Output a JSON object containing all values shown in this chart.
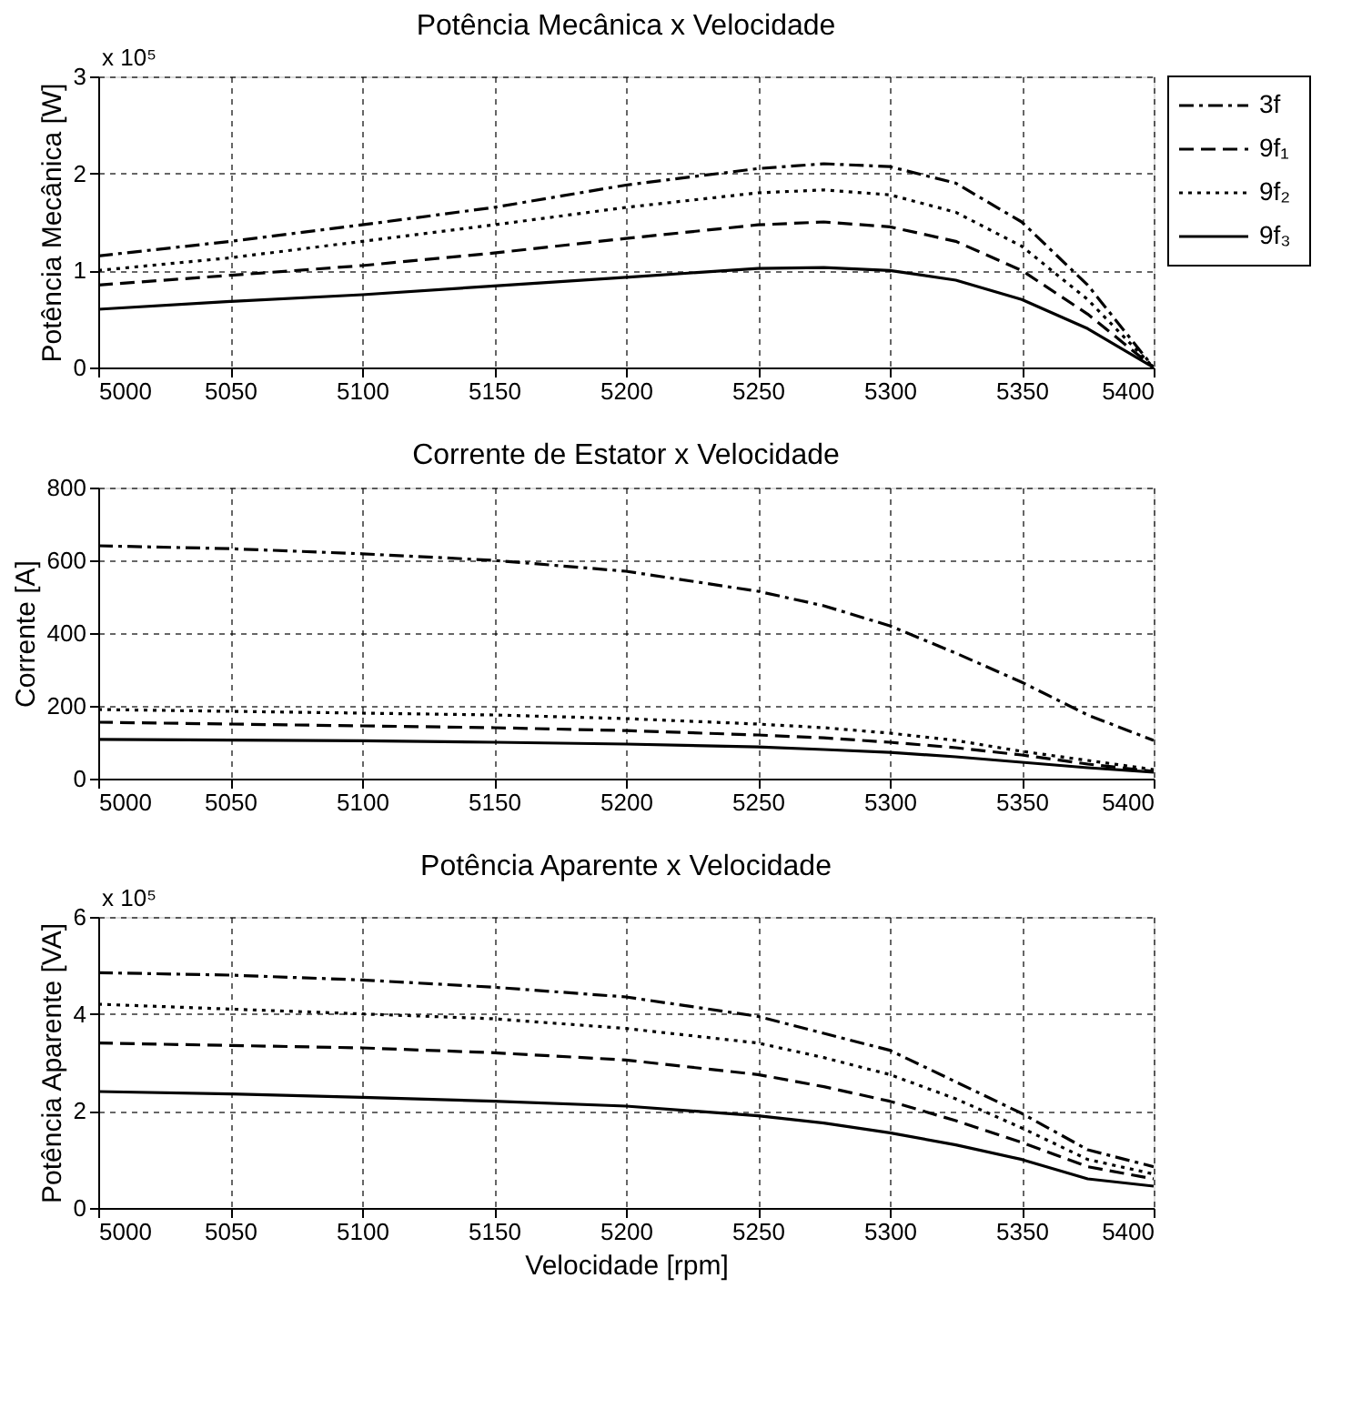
{
  "chart_data": [
    {
      "type": "line",
      "title": "Potência Mecânica x Velocidade",
      "ylabel": "Potência Mecânica [W]",
      "annotations": [
        "x 10⁵"
      ],
      "x": [
        5000,
        5050,
        5100,
        5150,
        5200,
        5250,
        5275,
        5300,
        5325,
        5350,
        5375,
        5400
      ],
      "xlim": [
        5000,
        5400
      ],
      "xticks": [
        5000,
        5050,
        5100,
        5150,
        5200,
        5250,
        5300,
        5350,
        5400
      ],
      "ylim": [
        0,
        3
      ],
      "yticks": [
        0,
        1,
        2,
        3
      ],
      "grid": true,
      "legend": "top right",
      "series": [
        {
          "name": "3f",
          "color": "#000000",
          "line_style": "dashdot",
          "values": [
            1.15,
            1.3,
            1.47,
            1.65,
            1.88,
            2.05,
            2.1,
            2.07,
            1.9,
            1.5,
            0.85,
            0
          ]
        },
        {
          "name": "9f₁",
          "color": "#000000",
          "line_style": "dashed",
          "values": [
            0.85,
            0.95,
            1.05,
            1.18,
            1.33,
            1.47,
            1.5,
            1.45,
            1.3,
            1.0,
            0.55,
            0
          ]
        },
        {
          "name": "9f₂",
          "color": "#000000",
          "line_style": "dotted",
          "values": [
            1.0,
            1.13,
            1.3,
            1.47,
            1.65,
            1.8,
            1.83,
            1.78,
            1.6,
            1.25,
            0.7,
            0
          ]
        },
        {
          "name": "9f₃",
          "color": "#000000",
          "line_style": "solid",
          "values": [
            0.6,
            0.68,
            0.75,
            0.84,
            0.93,
            1.02,
            1.03,
            1.0,
            0.9,
            0.7,
            0.4,
            0
          ]
        }
      ]
    },
    {
      "type": "line",
      "title": "Corrente de Estator x Velocidade",
      "ylabel": "Corrente [A]",
      "x": [
        5000,
        5050,
        5100,
        5150,
        5200,
        5250,
        5275,
        5300,
        5325,
        5350,
        5375,
        5400
      ],
      "xlim": [
        5000,
        5400
      ],
      "xticks": [
        5000,
        5050,
        5100,
        5150,
        5200,
        5250,
        5300,
        5350,
        5400
      ],
      "ylim": [
        0,
        800
      ],
      "yticks": [
        0,
        200,
        400,
        600,
        800
      ],
      "grid": true,
      "series": [
        {
          "color": "#000000",
          "line_style": "dashdot",
          "values": [
            640,
            632,
            618,
            600,
            570,
            515,
            475,
            420,
            345,
            265,
            175,
            105
          ]
        },
        {
          "color": "#000000",
          "line_style": "dashed",
          "values": [
            155,
            150,
            145,
            140,
            132,
            120,
            112,
            100,
            85,
            65,
            40,
            20
          ]
        },
        {
          "color": "#000000",
          "line_style": "dotted",
          "values": [
            190,
            185,
            180,
            175,
            165,
            150,
            140,
            125,
            105,
            75,
            50,
            25
          ]
        },
        {
          "color": "#000000",
          "line_style": "solid",
          "values": [
            108,
            106,
            104,
            100,
            95,
            87,
            80,
            72,
            60,
            45,
            30,
            18
          ]
        }
      ]
    },
    {
      "type": "line",
      "title": "Potência Aparente x Velocidade",
      "ylabel": "Potência Aparente [VA]",
      "xlabel": "Velocidade [rpm]",
      "annotations": [
        "x 10⁵"
      ],
      "x": [
        5000,
        5050,
        5100,
        5150,
        5200,
        5250,
        5275,
        5300,
        5325,
        5350,
        5375,
        5400
      ],
      "xlim": [
        5000,
        5400
      ],
      "xticks": [
        5000,
        5050,
        5100,
        5150,
        5200,
        5250,
        5300,
        5350,
        5400
      ],
      "ylim": [
        0,
        6
      ],
      "yticks": [
        0,
        2,
        4,
        6
      ],
      "grid": true,
      "series": [
        {
          "color": "#000000",
          "line_style": "dashdot",
          "values": [
            4.85,
            4.8,
            4.7,
            4.55,
            4.35,
            3.95,
            3.6,
            3.25,
            2.6,
            1.95,
            1.2,
            0.85
          ]
        },
        {
          "color": "#000000",
          "line_style": "dashed",
          "values": [
            3.4,
            3.35,
            3.3,
            3.2,
            3.05,
            2.75,
            2.5,
            2.2,
            1.8,
            1.35,
            0.85,
            0.6
          ]
        },
        {
          "color": "#000000",
          "line_style": "dotted",
          "values": [
            4.2,
            4.1,
            4.0,
            3.9,
            3.7,
            3.4,
            3.1,
            2.75,
            2.25,
            1.65,
            1.0,
            0.7
          ]
        },
        {
          "color": "#000000",
          "line_style": "solid",
          "values": [
            2.4,
            2.35,
            2.28,
            2.2,
            2.1,
            1.9,
            1.75,
            1.55,
            1.3,
            1.0,
            0.6,
            0.45
          ]
        }
      ]
    }
  ]
}
